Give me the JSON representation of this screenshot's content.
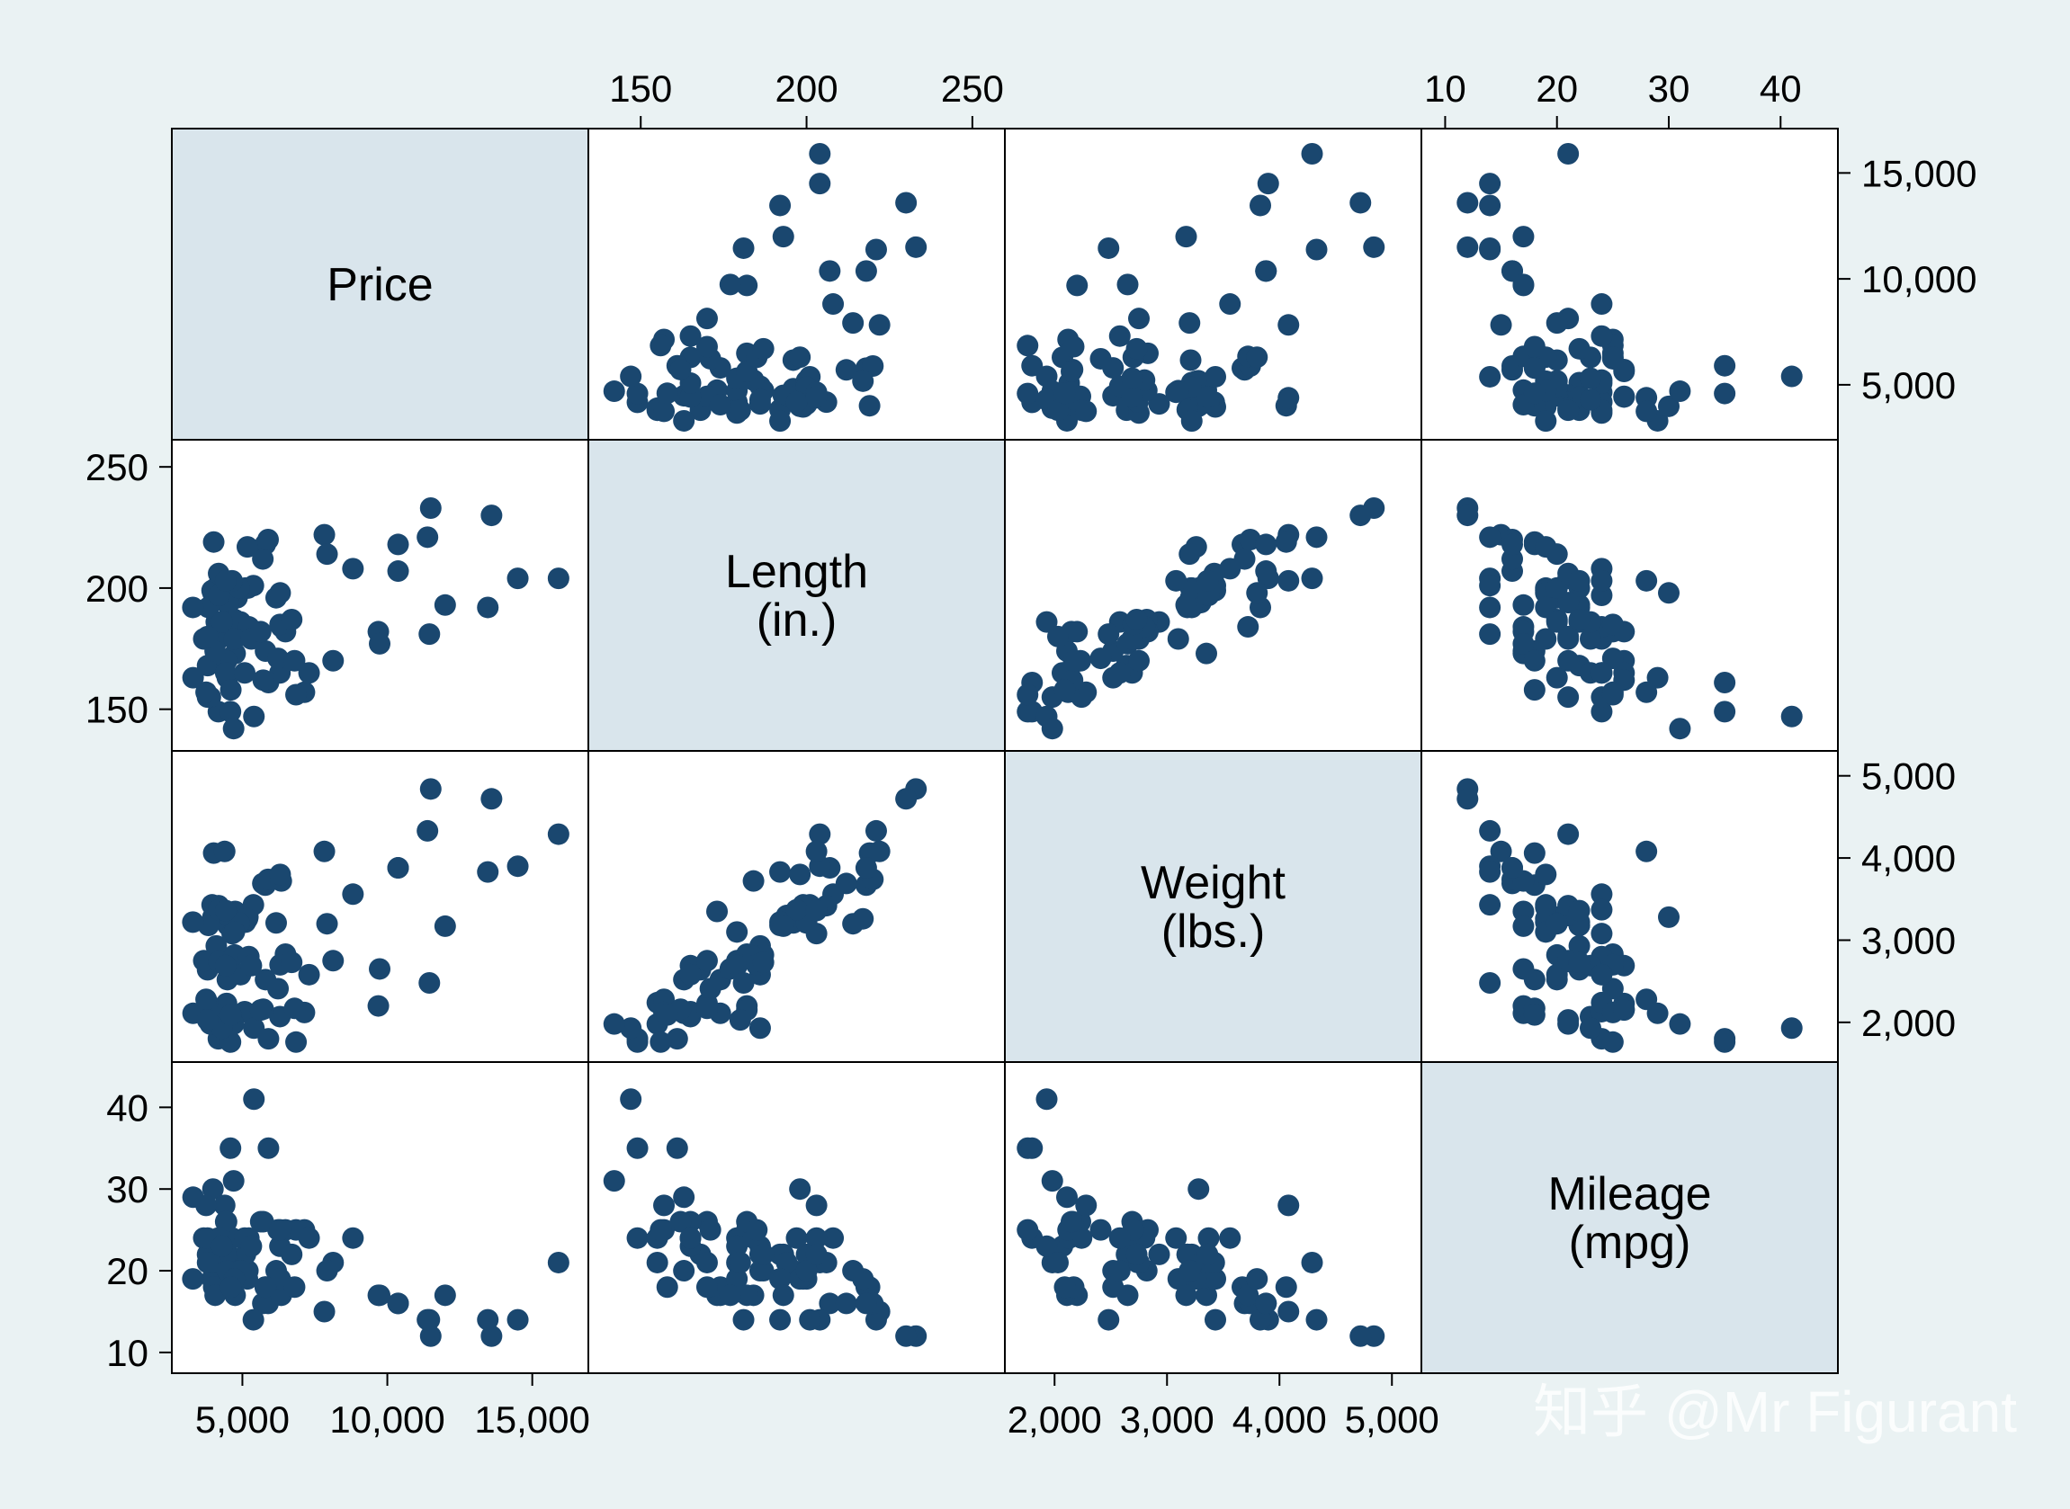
{
  "chart_data": {
    "type": "scatter",
    "title": "",
    "watermark": "知乎 @Mr Figurant",
    "colors": {
      "background": "#eaf2f3",
      "plot": "#ffffff",
      "diagonal": "#d9e5ec",
      "marker": "#1a476f",
      "frame": "#000000"
    },
    "variables": [
      {
        "key": "price",
        "label_lines": [
          "Price"
        ],
        "range": [
          3000,
          16500
        ],
        "ticks": [
          5000,
          10000,
          15000
        ],
        "tick_labels": [
          "5,000",
          "10,000",
          "15,000"
        ],
        "tick_side": "bottom"
      },
      {
        "key": "length",
        "label_lines": [
          "Length",
          "(in.)"
        ],
        "range": [
          138,
          256
        ],
        "ticks": [
          150,
          200,
          250
        ],
        "tick_labels": [
          "150",
          "200",
          "250"
        ],
        "tick_side": "top"
      },
      {
        "key": "weight",
        "label_lines": [
          "Weight",
          "(lbs.)"
        ],
        "range": [
          1670,
          5150
        ],
        "ticks": [
          2000,
          3000,
          4000,
          5000
        ],
        "tick_labels": [
          "2,000",
          "3,000",
          "4,000",
          "5,000"
        ],
        "tick_side": "bottom"
      },
      {
        "key": "mileage",
        "label_lines": [
          "Mileage",
          "(mpg)"
        ],
        "range": [
          9,
          44
        ],
        "ticks": [
          10,
          20,
          30,
          40
        ],
        "tick_labels": [
          "10",
          "20",
          "30",
          "40"
        ],
        "tick_side": "top"
      }
    ],
    "points": [
      [
        4099,
        186,
        2930,
        22
      ],
      [
        4749,
        173,
        3350,
        17
      ],
      [
        3799,
        168,
        2640,
        22
      ],
      [
        4816,
        196,
        3250,
        20
      ],
      [
        7827,
        222,
        4080,
        15
      ],
      [
        5788,
        218,
        3670,
        18
      ],
      [
        4453,
        170,
        2230,
        26
      ],
      [
        5189,
        200,
        3280,
        20
      ],
      [
        10372,
        207,
        3880,
        16
      ],
      [
        4082,
        200,
        3400,
        19
      ],
      [
        11385,
        221,
        4330,
        14
      ],
      [
        14500,
        204,
        3900,
        14
      ],
      [
        15906,
        204,
        4290,
        21
      ],
      [
        3299,
        163,
        2110,
        29
      ],
      [
        5705,
        212,
        3690,
        16
      ],
      [
        4504,
        193,
        3180,
        22
      ],
      [
        5104,
        200,
        3220,
        22
      ],
      [
        3667,
        179,
        2750,
        24
      ],
      [
        3955,
        199,
        3430,
        19
      ],
      [
        3984,
        198,
        3280,
        30
      ],
      [
        4010,
        219,
        4060,
        18
      ],
      [
        5886,
        220,
        3740,
        16
      ],
      [
        6342,
        184,
        3720,
        17
      ],
      [
        4389,
        203,
        4080,
        28
      ],
      [
        4187,
        179,
        2740,
        21
      ],
      [
        11497,
        233,
        4840,
        12
      ],
      [
        13594,
        230,
        4720,
        12
      ],
      [
        13466,
        192,
        3830,
        14
      ],
      [
        3829,
        192,
        3180,
        22
      ],
      [
        5379,
        201,
        3430,
        14
      ],
      [
        6165,
        196,
        3210,
        20
      ],
      [
        4516,
        194,
        3300,
        21
      ],
      [
        6303,
        198,
        3800,
        19
      ],
      [
        3291,
        192,
        3220,
        19
      ],
      [
        8814,
        208,
        3560,
        24
      ],
      [
        5172,
        217,
        3260,
        19
      ],
      [
        4733,
        187,
        2820,
        20
      ],
      [
        4890,
        200,
        3210,
        20
      ],
      [
        4181,
        206,
        3420,
        21
      ],
      [
        4195,
        197,
        3370,
        24
      ],
      [
        10371,
        218,
        3880,
        16
      ],
      [
        4647,
        203,
        3080,
        24
      ],
      [
        4425,
        203,
        3360,
        22
      ],
      [
        4482,
        163,
        2520,
        20
      ],
      [
        6486,
        182,
        2830,
        25
      ],
      [
        4060,
        174,
        2110,
        17
      ],
      [
        5798,
        174,
        2520,
        18
      ],
      [
        4934,
        186,
        2580,
        20
      ],
      [
        5222,
        184,
        2800,
        24
      ],
      [
        4723,
        179,
        3100,
        19
      ],
      [
        4424,
        165,
        2690,
        26
      ],
      [
        4172,
        149,
        1800,
        24
      ],
      [
        9690,
        182,
        2200,
        17
      ],
      [
        6295,
        165,
        2070,
        23
      ],
      [
        9735,
        177,
        2650,
        17
      ],
      [
        6229,
        171,
        2410,
        25
      ],
      [
        4589,
        149,
        1760,
        35
      ],
      [
        5079,
        165,
        2130,
        24
      ],
      [
        8129,
        170,
        2750,
        21
      ],
      [
        3895,
        155,
        1980,
        21
      ],
      [
        3798,
        155,
        2240,
        24
      ],
      [
        5899,
        161,
        1800,
        35
      ],
      [
        3748,
        157,
        2280,
        28
      ],
      [
        5719,
        162,
        2160,
        26
      ],
      [
        7140,
        157,
        2120,
        25
      ],
      [
        5397,
        147,
        1930,
        41
      ],
      [
        4697,
        142,
        1980,
        31
      ],
      [
        6850,
        156,
        1760,
        25
      ],
      [
        11995,
        193,
        3170,
        17
      ],
      [
        5309,
        179,
        2690,
        23
      ],
      [
        6800,
        170,
        2170,
        18
      ],
      [
        4296,
        186,
        1930,
        23
      ],
      [
        5632,
        182,
        2150,
        26
      ],
      [
        3800,
        180,
        2030,
        21
      ],
      [
        6300,
        185,
        2700,
        25
      ],
      [
        11450,
        181,
        2480,
        14
      ],
      [
        7300,
        165,
        2580,
        24
      ],
      [
        7920,
        214,
        3200,
        20
      ],
      [
        6700,
        187,
        2730,
        22
      ],
      [
        4600,
        158,
        2090,
        18
      ]
    ]
  }
}
